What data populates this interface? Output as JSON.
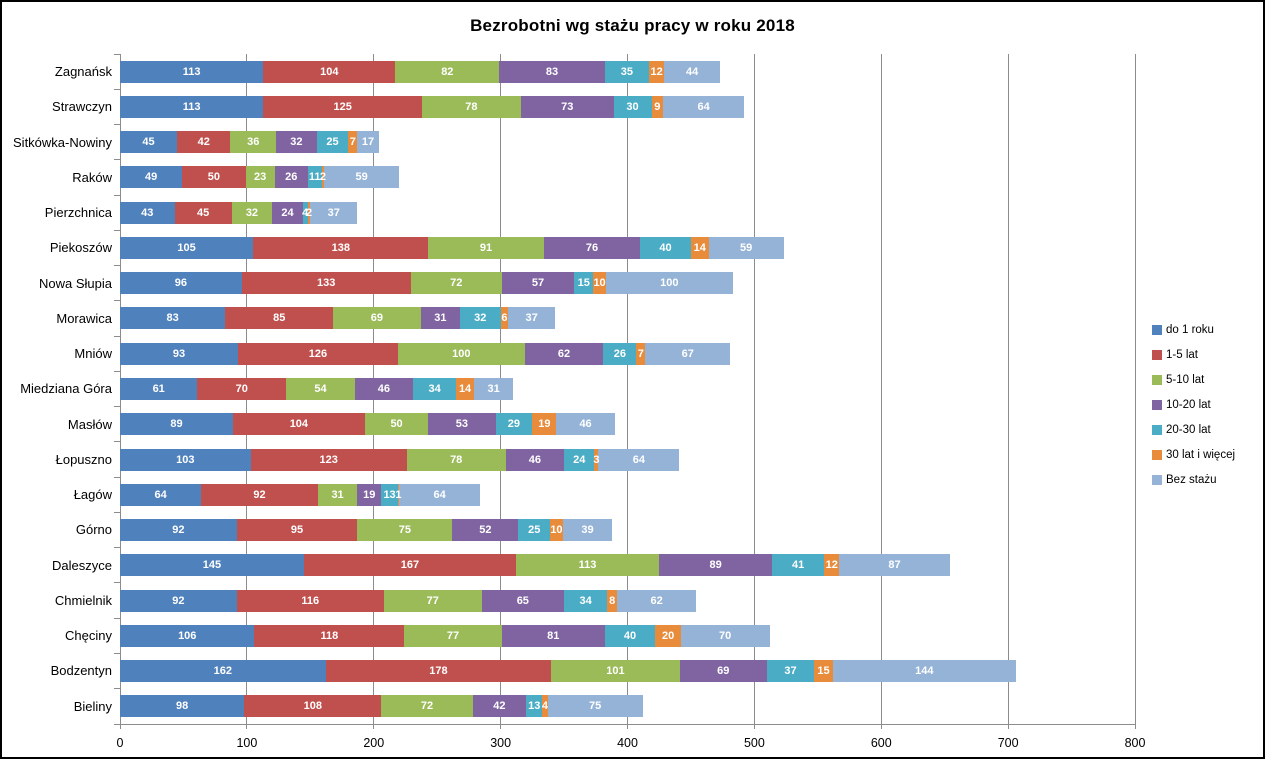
{
  "chart_data": {
    "type": "bar",
    "orientation": "horizontal",
    "stacked": true,
    "title": "Bezrobotni wg stażu pracy w roku 2018",
    "categories": [
      "Zagnańsk",
      "Strawczyn",
      "Sitkówka-Nowiny",
      "Raków",
      "Pierzchnica",
      "Piekoszów",
      "Nowa Słupia",
      "Morawica",
      "Mniów",
      "Miedziana Góra",
      "Masłów",
      "Łopuszno",
      "Łagów",
      "Górno",
      "Daleszyce",
      "Chmielnik",
      "Chęciny",
      "Bodzentyn",
      "Bieliny"
    ],
    "series": [
      {
        "name": "do 1 roku",
        "color": "#4F81BD",
        "values": [
          113,
          113,
          45,
          49,
          43,
          105,
          96,
          83,
          93,
          61,
          89,
          103,
          64,
          92,
          145,
          92,
          106,
          162,
          98
        ]
      },
      {
        "name": "1-5 lat",
        "color": "#C0504D",
        "values": [
          104,
          125,
          42,
          50,
          45,
          138,
          133,
          85,
          126,
          70,
          104,
          123,
          92,
          95,
          167,
          116,
          118,
          178,
          108
        ]
      },
      {
        "name": "5-10 lat",
        "color": "#9BBB59",
        "values": [
          82,
          78,
          36,
          23,
          32,
          91,
          72,
          69,
          100,
          54,
          50,
          78,
          31,
          75,
          113,
          77,
          77,
          101,
          72
        ]
      },
      {
        "name": "10-20 lat",
        "color": "#8064A2",
        "values": [
          83,
          73,
          32,
          26,
          24,
          76,
          57,
          31,
          62,
          46,
          53,
          46,
          19,
          52,
          89,
          65,
          81,
          69,
          42
        ]
      },
      {
        "name": "20-30 lat",
        "color": "#4BACC6",
        "values": [
          35,
          30,
          25,
          11,
          4,
          40,
          15,
          32,
          26,
          34,
          29,
          24,
          13,
          25,
          41,
          34,
          40,
          37,
          13
        ]
      },
      {
        "name": "30 lat i więcej",
        "color": "#E88C3C",
        "values": [
          12,
          9,
          7,
          2,
          2,
          14,
          10,
          6,
          7,
          14,
          19,
          3,
          1,
          10,
          12,
          8,
          20,
          15,
          4
        ]
      },
      {
        "name": "Bez stażu",
        "color": "#95B3D7",
        "values": [
          44,
          64,
          17,
          59,
          37,
          59,
          100,
          37,
          67,
          31,
          46,
          64,
          64,
          39,
          87,
          62,
          70,
          144,
          75
        ]
      }
    ],
    "x_axis": {
      "min": 0,
      "max": 800,
      "tick_interval": 100,
      "ticks": [
        "0",
        "100",
        "200",
        "300",
        "400",
        "500",
        "600",
        "700",
        "800"
      ]
    },
    "legend_position": "right",
    "gridlines": true,
    "value_labels": "inside-white-bold"
  }
}
